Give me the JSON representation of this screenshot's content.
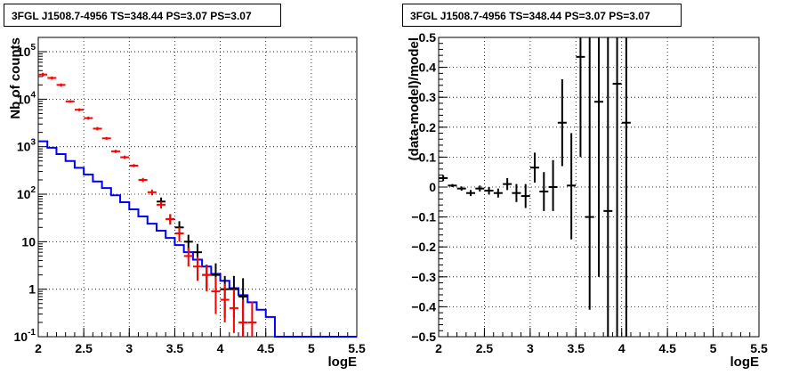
{
  "chart_data": [
    {
      "type": "line",
      "title": "3FGL J1508.7-4956 TS=348.44 PS=3.07 PS=3.07",
      "xlabel": "logE",
      "ylabel": "Nb of counts",
      "xlim": [
        2,
        5.5
      ],
      "ylim": [
        0.1,
        200000
      ],
      "yscale": "log",
      "grid": true,
      "xticks": [
        "2",
        "2.5",
        "3",
        "3.5",
        "4",
        "4.5",
        "5",
        "5.5"
      ],
      "yticks": [
        "10^-1",
        "1",
        "10",
        "10^2",
        "10^3",
        "10^4",
        "10^5"
      ],
      "series": [
        {
          "type": "step",
          "color": "#0000ff",
          "x_edges": [
            2.0,
            2.1,
            2.2,
            2.3,
            2.4,
            2.5,
            2.6,
            2.7,
            2.8,
            2.9,
            3.0,
            3.1,
            3.2,
            3.3,
            3.4,
            3.5,
            3.6,
            3.7,
            3.8,
            3.9,
            4.0,
            4.1,
            4.2,
            4.3,
            4.4,
            4.5,
            4.6,
            4.7,
            4.8,
            4.9,
            5.0,
            5.1,
            5.2,
            5.3,
            5.4,
            5.5
          ],
          "values": [
            1300,
            950,
            700,
            500,
            360,
            260,
            185,
            135,
            95,
            68,
            48,
            34,
            24,
            17,
            12,
            8.5,
            6,
            4.2,
            3,
            2.1,
            1.5,
            1.05,
            0.75,
            0.53,
            0.37,
            0.26,
            0.1,
            0.1,
            0.1,
            0.1,
            0.1,
            0.1,
            0.1,
            0.1,
            0.1
          ]
        },
        {
          "type": "errorbar",
          "color": "#000000",
          "x": [
            3.35,
            3.45,
            3.55,
            3.65,
            3.75,
            3.85,
            3.95,
            4.05,
            4.15,
            4.25
          ],
          "y": [
            70,
            30,
            20,
            10,
            6,
            2,
            2,
            1,
            1,
            0.7
          ],
          "ylow": [
            58,
            23,
            14,
            6.5,
            3.5,
            1,
            0.9,
            0.25,
            0.25,
            0.1
          ],
          "yhigh": [
            85,
            38,
            27,
            14,
            9,
            3.3,
            3.5,
            1.9,
            1.9,
            1.7
          ]
        },
        {
          "type": "errorbar",
          "color": "#ff0000",
          "x": [
            2.05,
            2.15,
            2.25,
            2.35,
            2.45,
            2.55,
            2.65,
            2.75,
            2.85,
            2.95,
            3.05,
            3.15,
            3.25,
            3.35,
            3.45,
            3.55,
            3.65,
            3.75,
            3.85,
            3.95,
            4.05,
            4.15,
            4.25,
            4.35
          ],
          "y": [
            33000,
            28000,
            20000,
            9000,
            6000,
            4000,
            2400,
            1500,
            800,
            600,
            400,
            200,
            110,
            60,
            30,
            15,
            5,
            3,
            2,
            0.9,
            0.6,
            0.4,
            0.2,
            0.2
          ],
          "ylow": [
            30000,
            26000,
            18500,
            8500,
            5600,
            3700,
            2200,
            1400,
            740,
            550,
            370,
            180,
            95,
            50,
            23,
            10,
            3,
            1.5,
            0.9,
            0.3,
            0.2,
            0.12,
            0.1,
            0.1
          ],
          "yhigh": [
            36000,
            30000,
            21500,
            9500,
            6400,
            4300,
            2600,
            1600,
            860,
            650,
            430,
            220,
            125,
            70,
            38,
            20,
            7.5,
            4.8,
            3.3,
            1.8,
            1.3,
            1.0,
            0.6,
            0.55
          ]
        }
      ]
    },
    {
      "type": "scatter",
      "title": "3FGL J1508.7-4956 TS=348.44 PS=3.07 PS=3.07",
      "xlabel": "logE",
      "ylabel": "(data-model)/model",
      "xlim": [
        2,
        5.5
      ],
      "ylim": [
        -0.5,
        0.5
      ],
      "grid": true,
      "xticks": [
        "2",
        "2.5",
        "3",
        "3.5",
        "4",
        "4.5",
        "5",
        "5.5"
      ],
      "yticks": [
        "−0.5",
        "−0.4",
        "−0.3",
        "−0.2",
        "−0.1",
        "0",
        "0.1",
        "0.2",
        "0.3",
        "0.4",
        "0.5"
      ],
      "series": [
        {
          "type": "errorbar",
          "color": "#000000",
          "x": [
            2.05,
            2.15,
            2.25,
            2.35,
            2.45,
            2.55,
            2.65,
            2.75,
            2.85,
            2.95,
            3.05,
            3.15,
            3.25,
            3.35,
            3.45,
            3.55,
            3.65,
            3.75,
            3.85,
            3.95,
            4.05
          ],
          "y": [
            0.03,
            0.005,
            -0.005,
            -0.02,
            -0.005,
            -0.012,
            -0.02,
            0.01,
            -0.02,
            -0.03,
            0.065,
            -0.015,
            0.0,
            0.215,
            0.005,
            0.435,
            -0.1,
            0.285,
            -0.08,
            0.345,
            0.215
          ],
          "ylow": [
            0.02,
            0.0,
            -0.012,
            -0.03,
            -0.015,
            -0.025,
            -0.035,
            -0.01,
            -0.05,
            -0.07,
            0.015,
            -0.08,
            -0.08,
            0.07,
            -0.175,
            0.1,
            -0.41,
            -0.3,
            -0.5,
            -0.5,
            -0.5
          ],
          "yhigh": [
            0.04,
            0.01,
            0.002,
            -0.01,
            0.005,
            0.0,
            -0.005,
            0.03,
            0.01,
            0.01,
            0.115,
            0.05,
            0.09,
            0.36,
            0.18,
            0.5,
            0.5,
            0.5,
            0.5,
            0.5,
            0.5
          ]
        }
      ]
    }
  ]
}
